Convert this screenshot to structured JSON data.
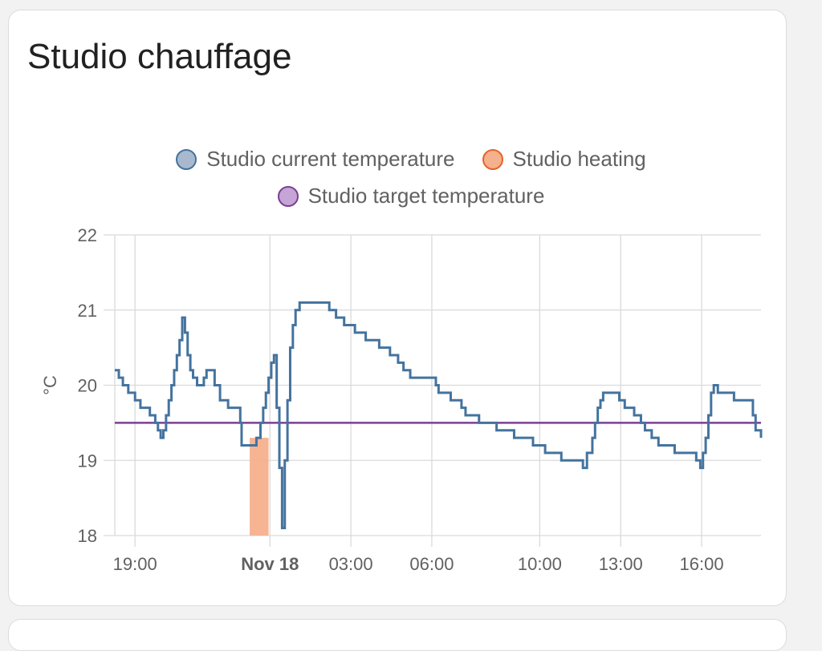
{
  "card": {
    "title": "Studio chauffage"
  },
  "colors": {
    "current": "#44739e",
    "current_fill": "#a8b9cf",
    "heating": "#f5b08d",
    "heating_border": "#e4642a",
    "target": "#7b3f96",
    "target_fill": "#c5a5d5"
  },
  "chart_data": {
    "type": "line",
    "title": "",
    "ylabel": "°C",
    "ylim": [
      18,
      22
    ],
    "yticks": [
      18,
      19,
      20,
      21,
      22
    ],
    "xticks": [
      {
        "label": "19:00",
        "x": 19.0,
        "bold": false
      },
      {
        "label": "Nov 18",
        "x": 24.0,
        "bold": true
      },
      {
        "label": "03:00",
        "x": 27.0,
        "bold": false
      },
      {
        "label": "06:00",
        "x": 30.0,
        "bold": false
      },
      {
        "label": "10:00",
        "x": 34.0,
        "bold": false
      },
      {
        "label": "13:00",
        "x": 37.0,
        "bold": false
      },
      {
        "label": "16:00",
        "x": 40.0,
        "bold": false
      }
    ],
    "xlim": [
      18.25,
      42.2
    ],
    "legend": [
      "Studio current temperature",
      "Studio heating",
      "Studio target temperature"
    ],
    "series": [
      {
        "name": "Studio current temperature",
        "type": "step",
        "points": [
          [
            18.25,
            20.2
          ],
          [
            18.4,
            20.1
          ],
          [
            18.55,
            20.0
          ],
          [
            18.75,
            19.9
          ],
          [
            19.0,
            19.8
          ],
          [
            19.2,
            19.7
          ],
          [
            19.55,
            19.6
          ],
          [
            19.75,
            19.5
          ],
          [
            19.85,
            19.4
          ],
          [
            19.95,
            19.3
          ],
          [
            20.05,
            19.4
          ],
          [
            20.15,
            19.6
          ],
          [
            20.25,
            19.8
          ],
          [
            20.35,
            20.0
          ],
          [
            20.45,
            20.2
          ],
          [
            20.55,
            20.4
          ],
          [
            20.65,
            20.6
          ],
          [
            20.75,
            20.9
          ],
          [
            20.85,
            20.7
          ],
          [
            20.95,
            20.4
          ],
          [
            21.05,
            20.2
          ],
          [
            21.15,
            20.1
          ],
          [
            21.3,
            20.0
          ],
          [
            21.55,
            20.1
          ],
          [
            21.65,
            20.2
          ],
          [
            21.95,
            20.0
          ],
          [
            22.15,
            19.8
          ],
          [
            22.45,
            19.7
          ],
          [
            22.9,
            19.5
          ],
          [
            22.95,
            19.2
          ],
          [
            23.5,
            19.3
          ],
          [
            23.65,
            19.5
          ],
          [
            23.75,
            19.7
          ],
          [
            23.85,
            19.9
          ],
          [
            23.95,
            20.1
          ],
          [
            24.05,
            20.3
          ],
          [
            24.15,
            20.4
          ],
          [
            24.25,
            19.7
          ],
          [
            24.35,
            18.9
          ],
          [
            24.45,
            18.1
          ],
          [
            24.55,
            19.0
          ],
          [
            24.65,
            19.8
          ],
          [
            24.75,
            20.5
          ],
          [
            24.85,
            20.8
          ],
          [
            24.95,
            21.0
          ],
          [
            25.1,
            21.1
          ],
          [
            26.2,
            21.0
          ],
          [
            26.45,
            20.9
          ],
          [
            26.75,
            20.8
          ],
          [
            27.15,
            20.7
          ],
          [
            27.55,
            20.6
          ],
          [
            28.05,
            20.5
          ],
          [
            28.45,
            20.4
          ],
          [
            28.75,
            20.3
          ],
          [
            28.95,
            20.2
          ],
          [
            29.2,
            20.1
          ],
          [
            30.15,
            20.0
          ],
          [
            30.25,
            19.9
          ],
          [
            30.7,
            19.8
          ],
          [
            31.1,
            19.7
          ],
          [
            31.25,
            19.6
          ],
          [
            31.75,
            19.5
          ],
          [
            32.4,
            19.4
          ],
          [
            33.05,
            19.3
          ],
          [
            33.75,
            19.2
          ],
          [
            34.2,
            19.1
          ],
          [
            34.8,
            19.0
          ],
          [
            35.6,
            18.9
          ],
          [
            35.75,
            19.1
          ],
          [
            35.95,
            19.3
          ],
          [
            36.05,
            19.5
          ],
          [
            36.15,
            19.7
          ],
          [
            36.25,
            19.8
          ],
          [
            36.35,
            19.9
          ],
          [
            36.95,
            19.8
          ],
          [
            37.15,
            19.7
          ],
          [
            37.5,
            19.6
          ],
          [
            37.75,
            19.5
          ],
          [
            37.9,
            19.4
          ],
          [
            38.15,
            19.3
          ],
          [
            38.4,
            19.2
          ],
          [
            39.0,
            19.1
          ],
          [
            39.8,
            19.0
          ],
          [
            39.95,
            18.9
          ],
          [
            40.05,
            19.1
          ],
          [
            40.15,
            19.3
          ],
          [
            40.25,
            19.6
          ],
          [
            40.35,
            19.9
          ],
          [
            40.45,
            20.0
          ],
          [
            40.6,
            19.9
          ],
          [
            41.2,
            19.8
          ],
          [
            41.9,
            19.6
          ],
          [
            42.0,
            19.4
          ],
          [
            42.2,
            19.3
          ]
        ]
      },
      {
        "name": "Studio heating",
        "type": "area",
        "ranges": [
          [
            23.25,
            23.95
          ]
        ]
      },
      {
        "name": "Studio target temperature",
        "type": "line",
        "value": 19.5
      }
    ]
  }
}
